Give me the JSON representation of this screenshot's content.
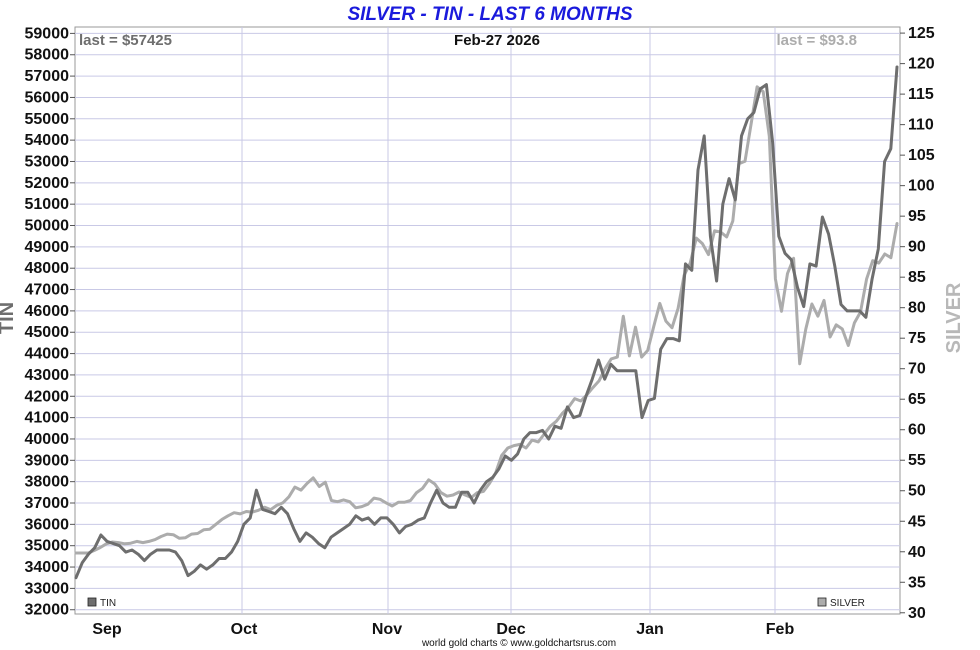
{
  "chart_data": {
    "type": "line",
    "title": "SILVER - TIN - LAST 6 MONTHS",
    "date_label": "Feb-27  2026",
    "footer": "world gold charts © www.goldchartsrus.com",
    "x_tick_labels": [
      "Sep",
      "Oct",
      "Nov",
      "Dec",
      "Jan",
      "Feb"
    ],
    "left_axis": {
      "label": "TIN",
      "ylim": [
        31800,
        59300
      ],
      "ticks": [
        32000,
        33000,
        34000,
        35000,
        36000,
        37000,
        38000,
        39000,
        40000,
        41000,
        42000,
        43000,
        44000,
        45000,
        46000,
        47000,
        48000,
        49000,
        50000,
        51000,
        52000,
        53000,
        54000,
        55000,
        56000,
        57000,
        58000,
        59000
      ]
    },
    "right_axis": {
      "label": "SILVER",
      "ylim": [
        29.8,
        126
      ],
      "ticks": [
        30,
        35,
        40,
        45,
        50,
        55,
        60,
        65,
        70,
        75,
        80,
        85,
        90,
        95,
        100,
        105,
        110,
        115,
        120,
        125
      ]
    },
    "grid": true,
    "legend_position": "bottom",
    "series": [
      {
        "name": "TIN",
        "axis": "left",
        "color": "#6e6e6e",
        "last_label": "last = $57425",
        "values": [
          33500,
          34200,
          34600,
          34900,
          35500,
          35200,
          35100,
          35000,
          34700,
          34800,
          34600,
          34300,
          34600,
          34800,
          34800,
          34800,
          34700,
          34300,
          33600,
          33800,
          34100,
          33900,
          34100,
          34400,
          34400,
          34700,
          35200,
          36000,
          36300,
          37600,
          36700,
          36600,
          36500,
          36800,
          36500,
          35800,
          35200,
          35600,
          35400,
          35100,
          34900,
          35400,
          35600,
          35800,
          36000,
          36400,
          36200,
          36300,
          36000,
          36300,
          36300,
          36000,
          35600,
          35900,
          36000,
          36200,
          36300,
          37000,
          37600,
          37000,
          36800,
          36800,
          37500,
          37500,
          37000,
          37600,
          38000,
          38200,
          38600,
          39200,
          39000,
          39300,
          40000,
          40300,
          40300,
          40400,
          40000,
          40600,
          40500,
          41500,
          41000,
          41100,
          42000,
          42800,
          43700,
          42800,
          43500,
          43200,
          43200,
          43200,
          43200,
          41000,
          41800,
          41900,
          44200,
          44700,
          44700,
          44600,
          48200,
          47900,
          52600,
          54200,
          49500,
          47400,
          51000,
          52200,
          51200,
          54200,
          55000,
          55300,
          56400,
          56600,
          53900,
          49500,
          48700,
          48400,
          47100,
          46200,
          48200,
          48100,
          50400,
          49600,
          48100,
          46300,
          46000,
          46000,
          46000,
          45700,
          47500,
          48900,
          53000,
          53600,
          57425
        ]
      },
      {
        "name": "SILVER",
        "axis": "right",
        "color": "#acacac",
        "last_label": "last = $93.8",
        "values": [
          39.8,
          39.8,
          39.8,
          40.2,
          40.7,
          41.3,
          41.6,
          41.5,
          41.3,
          41.4,
          41.7,
          41.5,
          41.7,
          42.0,
          42.5,
          42.9,
          42.8,
          42.2,
          42.3,
          42.9,
          43.0,
          43.6,
          43.7,
          44.5,
          45.3,
          45.9,
          46.4,
          46.2,
          46.6,
          46.5,
          46.8,
          47.3,
          46.9,
          47.6,
          48.0,
          49.0,
          50.6,
          50.1,
          51.2,
          52.1,
          50.7,
          51.4,
          48.4,
          48.2,
          48.5,
          48.2,
          47.2,
          47.4,
          47.8,
          48.8,
          48.6,
          48.0,
          47.5,
          48.1,
          48.1,
          48.4,
          49.7,
          50.4,
          51.8,
          51.1,
          49.7,
          49.1,
          49.3,
          49.8,
          49.3,
          48.9,
          49.7,
          49.9,
          51.2,
          52.9,
          55.8,
          57.0,
          57.4,
          57.6,
          57.0,
          58.3,
          58.0,
          59.3,
          60.6,
          61.4,
          62.7,
          63.7,
          65.1,
          64.7,
          65.7,
          66.9,
          68.0,
          70.0,
          71.6,
          71.9,
          78.6,
          72.1,
          76.8,
          71.9,
          73.0,
          76.9,
          80.7,
          77.8,
          76.7,
          79.9,
          85.3,
          87.3,
          91.4,
          90.5,
          88.7,
          92.6,
          92.4,
          91.6,
          94.2,
          103.6,
          104.0,
          110.0,
          116.2,
          115.4,
          108.1,
          84.7,
          79.4,
          85.6,
          88.1,
          70.8,
          76.5,
          80.6,
          78.6,
          81.2,
          75.2,
          77.2,
          76.5,
          73.8,
          77.5,
          79.3,
          84.7,
          87.7,
          87.3,
          88.8,
          88.2,
          93.8
        ]
      }
    ]
  }
}
